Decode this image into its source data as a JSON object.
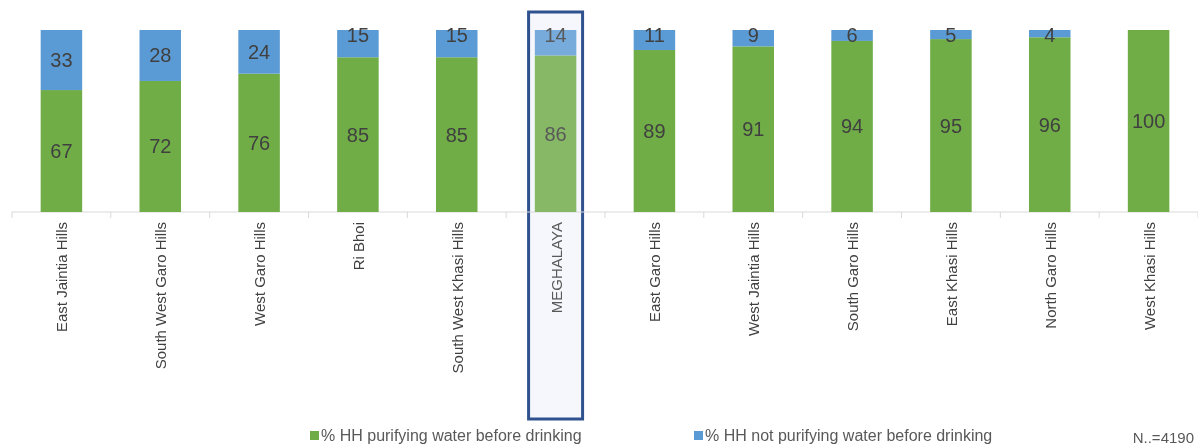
{
  "chart_data": {
    "type": "bar",
    "stacked": true,
    "categories": [
      "East Jaintia Hills",
      "South West Garo Hills",
      "West Garo Hills",
      "Ri Bhoi",
      "South West Khasi Hills",
      "MEGHALAYA",
      "East Garo Hills",
      "West Jaintia Hills",
      "South Garo Hills",
      "East Khasi Hills",
      "North Garo Hills",
      "West Khasi Hills"
    ],
    "series": [
      {
        "name": "% HH purifying water before drinking",
        "color": "#70ad47",
        "colors": [
          "#70ad47",
          "#70ad47",
          "#70ad47",
          "#70ad47",
          "#70ad47",
          "#86b866",
          "#70ad47",
          "#70ad47",
          "#70ad47",
          "#70ad47",
          "#70ad47",
          "#70ad47"
        ],
        "values": [
          67,
          72,
          76,
          85,
          85,
          86,
          89,
          91,
          94,
          95,
          96,
          100
        ],
        "value_labels": [
          "67",
          "72",
          "76",
          "85",
          "85",
          "86",
          "89",
          "91",
          "94",
          "95",
          "96",
          "100"
        ]
      },
      {
        "name": "% HH not purifying water before drinking",
        "color": "#5b9bd5",
        "colors": [
          "#5b9bd5",
          "#5b9bd5",
          "#5b9bd5",
          "#5b9bd5",
          "#5b9bd5",
          "#76abdc",
          "#5b9bd5",
          "#5b9bd5",
          "#5b9bd5",
          "#5b9bd5",
          "#5b9bd5",
          "#5b9bd5"
        ],
        "values": [
          33,
          28,
          24,
          15,
          15,
          14,
          11,
          9,
          6,
          5,
          4,
          0
        ],
        "value_labels": [
          "33",
          "28",
          "24",
          "15",
          "15",
          "14",
          "11",
          "9",
          "6",
          "5",
          "4",
          null
        ]
      }
    ],
    "legend": "bottom",
    "annotations": [
      "N..=4190"
    ]
  }
}
